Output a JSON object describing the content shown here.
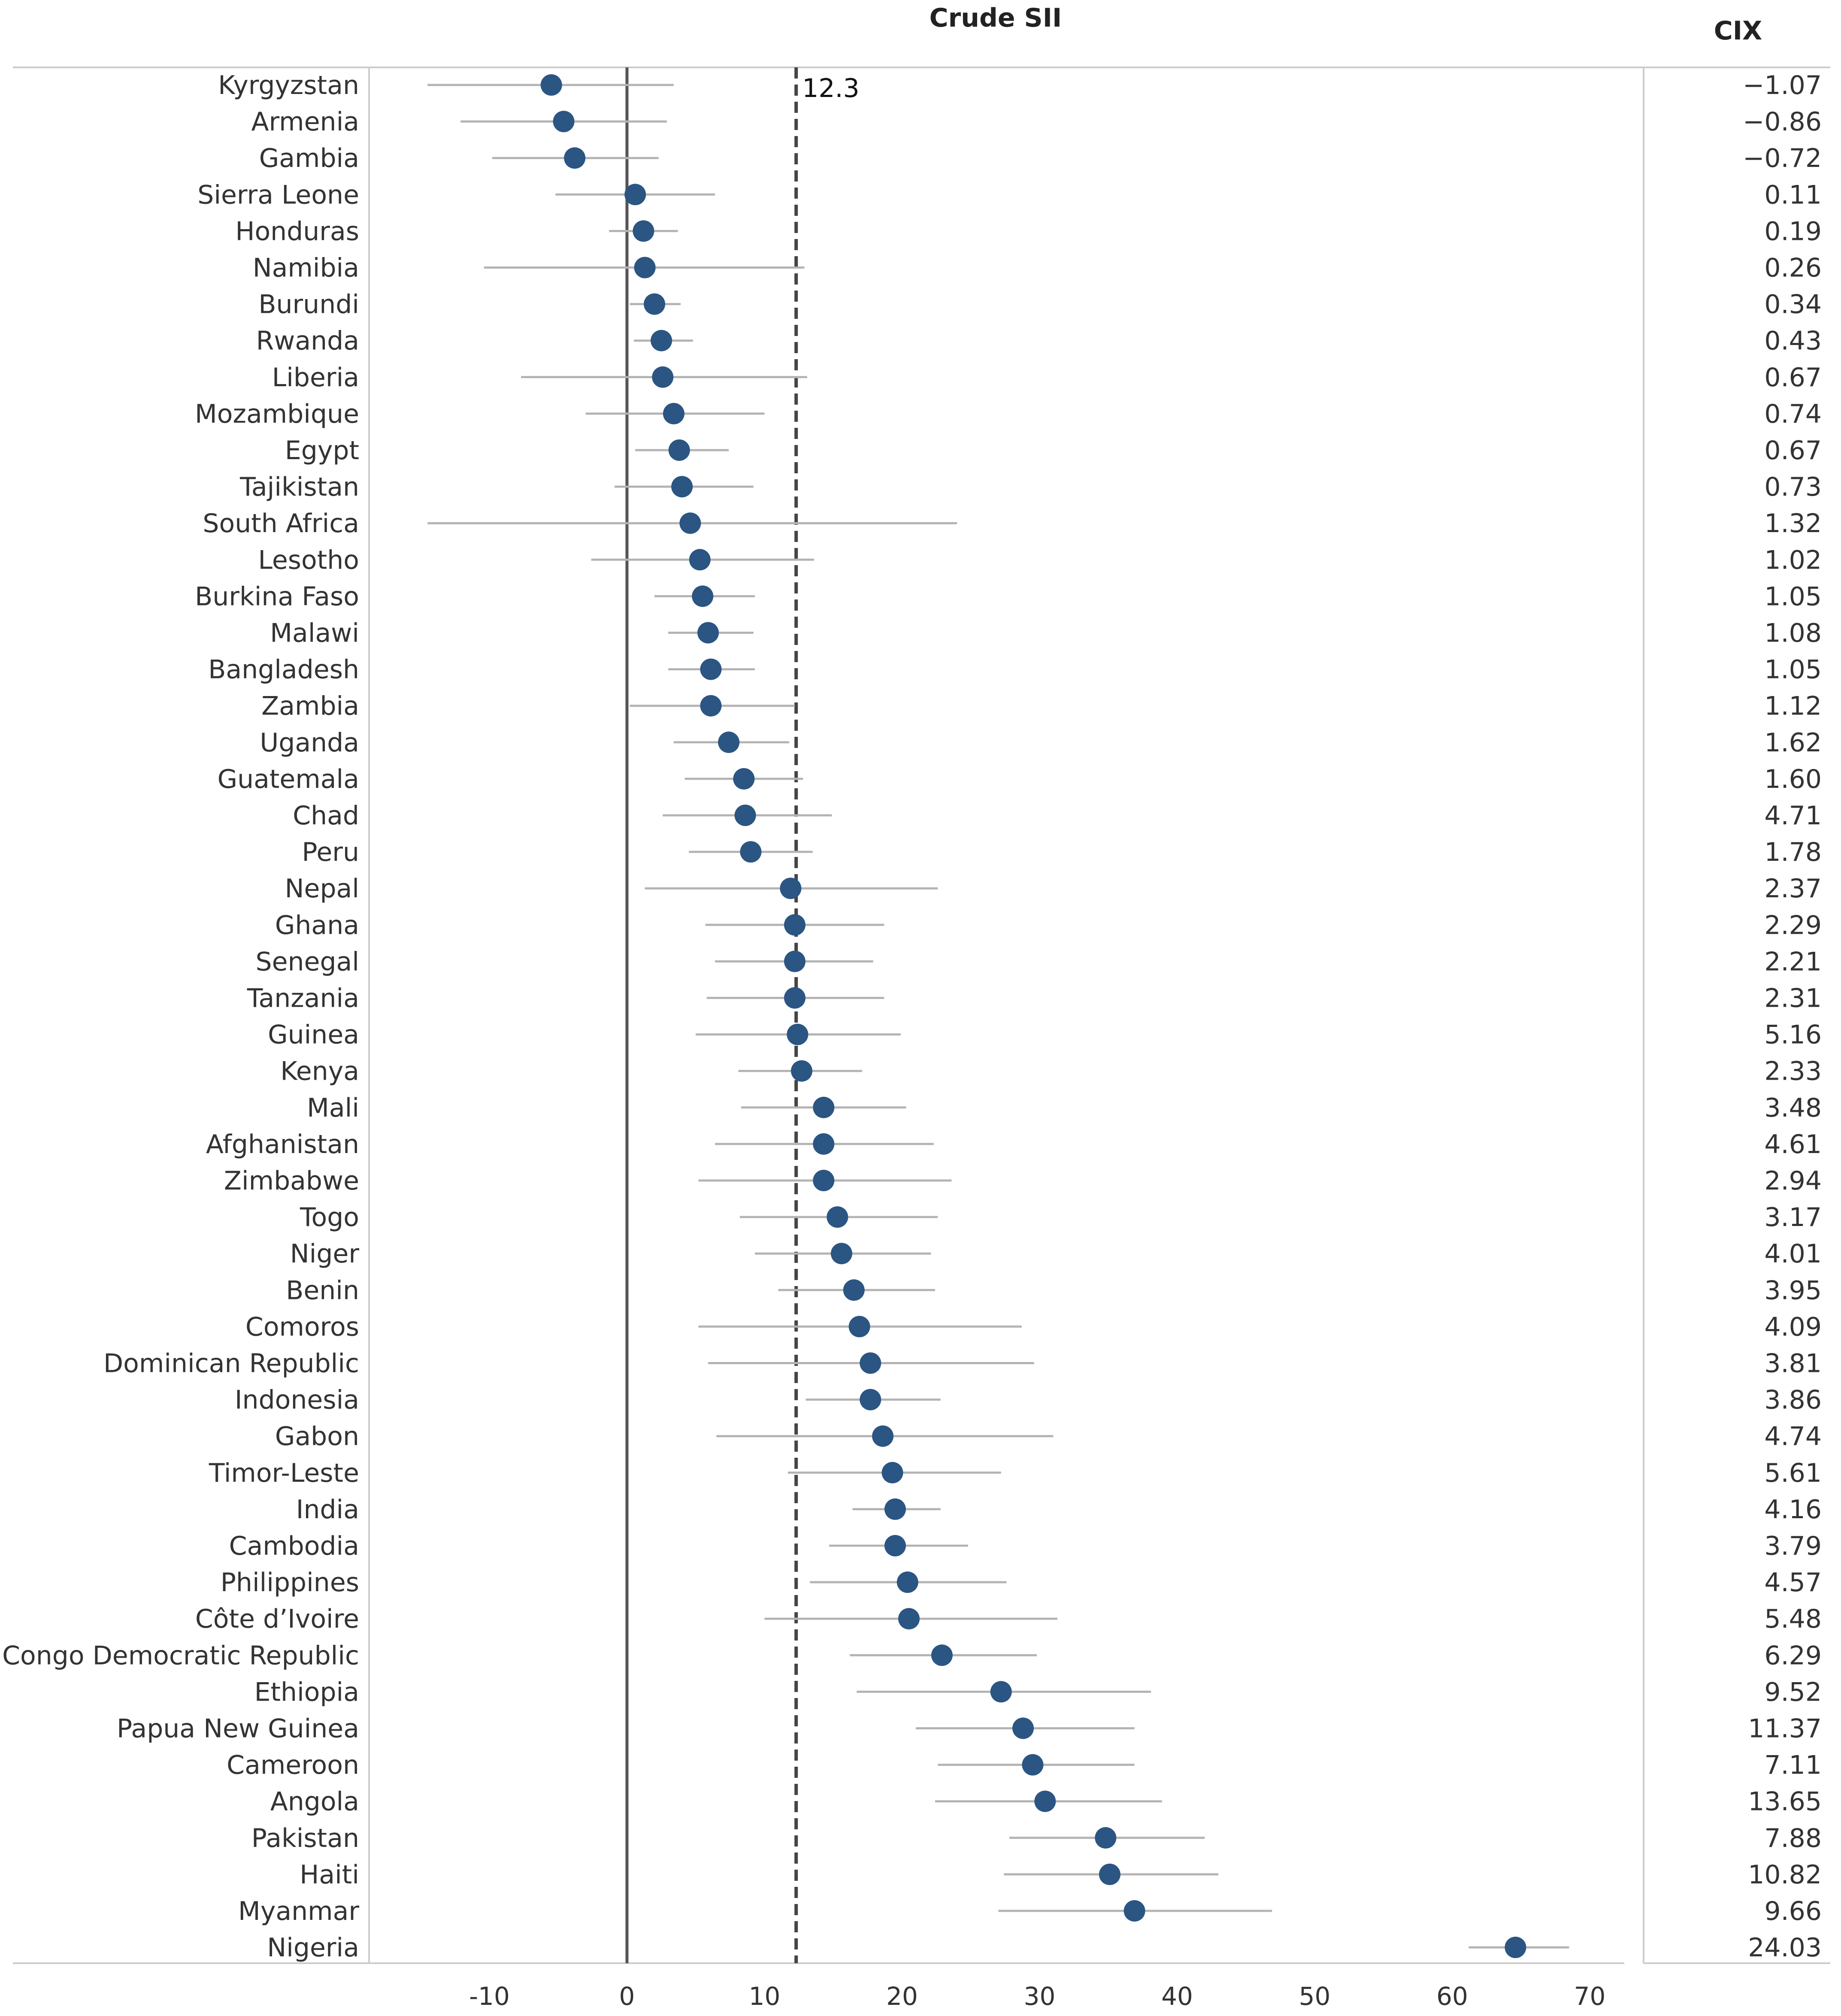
{
  "chart_data": {
    "type": "forest_plot",
    "title": "Crude SII",
    "right_column_title": "CIX",
    "reference_line": {
      "value": 12.3,
      "label": "12.3"
    },
    "zero_line": 0,
    "xlim": [
      -20,
      72
    ],
    "x_ticks": [
      -10,
      0,
      10,
      20,
      30,
      40,
      50,
      60,
      70
    ],
    "x_tick_labels": [
      "-10",
      "0",
      "10",
      "20",
      "30",
      "40",
      "50",
      "60",
      "70"
    ],
    "colors": {
      "point": "#2b5582",
      "ci": "#b3b3b3",
      "zero": "#555555",
      "ref": "#444444"
    },
    "rows": [
      {
        "country": "Kyrgyzstan",
        "sii": -5.5,
        "lo": -14.5,
        "hi": 3.4,
        "cix": "−1.07"
      },
      {
        "country": "Armenia",
        "sii": -4.6,
        "lo": -12.1,
        "hi": 2.9,
        "cix": "−0.86"
      },
      {
        "country": "Gambia",
        "sii": -3.8,
        "lo": -9.8,
        "hi": 2.3,
        "cix": "−0.72"
      },
      {
        "country": "Sierra Leone",
        "sii": 0.6,
        "lo": -5.2,
        "hi": 6.4,
        "cix": "0.11"
      },
      {
        "country": "Honduras",
        "sii": 1.2,
        "lo": -1.3,
        "hi": 3.7,
        "cix": "0.19"
      },
      {
        "country": "Namibia",
        "sii": 1.3,
        "lo": -10.4,
        "hi": 12.9,
        "cix": "0.26"
      },
      {
        "country": "Burundi",
        "sii": 2.0,
        "lo": 0.2,
        "hi": 3.9,
        "cix": "0.34"
      },
      {
        "country": "Rwanda",
        "sii": 2.5,
        "lo": 0.5,
        "hi": 4.8,
        "cix": "0.43"
      },
      {
        "country": "Liberia",
        "sii": 2.6,
        "lo": -7.7,
        "hi": 13.1,
        "cix": "0.67"
      },
      {
        "country": "Mozambique",
        "sii": 3.4,
        "lo": -3.0,
        "hi": 10.0,
        "cix": "0.74"
      },
      {
        "country": "Egypt",
        "sii": 3.8,
        "lo": 0.6,
        "hi": 7.4,
        "cix": "0.67"
      },
      {
        "country": "Tajikistan",
        "sii": 4.0,
        "lo": -0.9,
        "hi": 9.2,
        "cix": "0.73"
      },
      {
        "country": "South Africa",
        "sii": 4.6,
        "lo": -14.5,
        "hi": 24.0,
        "cix": "1.32"
      },
      {
        "country": "Lesotho",
        "sii": 5.3,
        "lo": -2.6,
        "hi": 13.6,
        "cix": "1.02"
      },
      {
        "country": "Burkina Faso",
        "sii": 5.5,
        "lo": 2.0,
        "hi": 9.3,
        "cix": "1.05"
      },
      {
        "country": "Malawi",
        "sii": 5.9,
        "lo": 3.0,
        "hi": 9.2,
        "cix": "1.08"
      },
      {
        "country": "Bangladesh",
        "sii": 6.1,
        "lo": 3.0,
        "hi": 9.3,
        "cix": "1.05"
      },
      {
        "country": "Zambia",
        "sii": 6.1,
        "lo": 0.2,
        "hi": 12.2,
        "cix": "1.12"
      },
      {
        "country": "Uganda",
        "sii": 7.4,
        "lo": 3.4,
        "hi": 11.8,
        "cix": "1.62"
      },
      {
        "country": "Guatemala",
        "sii": 8.5,
        "lo": 4.2,
        "hi": 12.8,
        "cix": "1.60"
      },
      {
        "country": "Chad",
        "sii": 8.6,
        "lo": 2.6,
        "hi": 14.9,
        "cix": "4.71"
      },
      {
        "country": "Peru",
        "sii": 9.0,
        "lo": 4.5,
        "hi": 13.5,
        "cix": "1.78"
      },
      {
        "country": "Nepal",
        "sii": 11.9,
        "lo": 1.3,
        "hi": 22.6,
        "cix": "2.37"
      },
      {
        "country": "Ghana",
        "sii": 12.2,
        "lo": 5.7,
        "hi": 18.7,
        "cix": "2.29"
      },
      {
        "country": "Senegal",
        "sii": 12.2,
        "lo": 6.4,
        "hi": 17.9,
        "cix": "2.21"
      },
      {
        "country": "Tanzania",
        "sii": 12.2,
        "lo": 5.8,
        "hi": 18.7,
        "cix": "2.31"
      },
      {
        "country": "Guinea",
        "sii": 12.4,
        "lo": 5.0,
        "hi": 19.9,
        "cix": "5.16"
      },
      {
        "country": "Kenya",
        "sii": 12.7,
        "lo": 8.1,
        "hi": 17.1,
        "cix": "2.33"
      },
      {
        "country": "Mali",
        "sii": 14.3,
        "lo": 8.3,
        "hi": 20.3,
        "cix": "3.48"
      },
      {
        "country": "Afghanistan",
        "sii": 14.3,
        "lo": 6.4,
        "hi": 22.3,
        "cix": "4.61"
      },
      {
        "country": "Zimbabwe",
        "sii": 14.3,
        "lo": 5.2,
        "hi": 23.6,
        "cix": "2.94"
      },
      {
        "country": "Togo",
        "sii": 15.3,
        "lo": 8.2,
        "hi": 22.6,
        "cix": "3.17"
      },
      {
        "country": "Niger",
        "sii": 15.6,
        "lo": 9.3,
        "hi": 22.1,
        "cix": "4.01"
      },
      {
        "country": "Benin",
        "sii": 16.5,
        "lo": 11.0,
        "hi": 22.4,
        "cix": "3.95"
      },
      {
        "country": "Comoros",
        "sii": 16.9,
        "lo": 5.2,
        "hi": 28.7,
        "cix": "4.09"
      },
      {
        "country": "Dominican Republic",
        "sii": 17.7,
        "lo": 5.9,
        "hi": 29.6,
        "cix": "3.81"
      },
      {
        "country": "Indonesia",
        "sii": 17.7,
        "lo": 13.0,
        "hi": 22.8,
        "cix": "3.86"
      },
      {
        "country": "Gabon",
        "sii": 18.6,
        "lo": 6.5,
        "hi": 31.0,
        "cix": "4.74"
      },
      {
        "country": "Timor-Leste",
        "sii": 19.3,
        "lo": 11.7,
        "hi": 27.2,
        "cix": "5.61"
      },
      {
        "country": "India",
        "sii": 19.5,
        "lo": 16.4,
        "hi": 22.8,
        "cix": "4.16"
      },
      {
        "country": "Cambodia",
        "sii": 19.5,
        "lo": 14.7,
        "hi": 24.8,
        "cix": "3.79"
      },
      {
        "country": "Philippines",
        "sii": 20.4,
        "lo": 13.3,
        "hi": 27.6,
        "cix": "4.57"
      },
      {
        "country": "Côte d’Ivoire",
        "sii": 20.5,
        "lo": 10.0,
        "hi": 31.3,
        "cix": "5.48"
      },
      {
        "country": "Congo Democratic Republic",
        "sii": 22.9,
        "lo": 16.2,
        "hi": 29.8,
        "cix": "6.29"
      },
      {
        "country": "Ethiopia",
        "sii": 27.2,
        "lo": 16.7,
        "hi": 38.1,
        "cix": "9.52"
      },
      {
        "country": "Papua New Guinea",
        "sii": 28.8,
        "lo": 21.0,
        "hi": 36.9,
        "cix": "11.37"
      },
      {
        "country": "Cameroon",
        "sii": 29.5,
        "lo": 22.6,
        "hi": 36.9,
        "cix": "7.11"
      },
      {
        "country": "Angola",
        "sii": 30.4,
        "lo": 22.4,
        "hi": 38.9,
        "cix": "13.65"
      },
      {
        "country": "Pakistan",
        "sii": 34.8,
        "lo": 27.8,
        "hi": 42.0,
        "cix": "7.88"
      },
      {
        "country": "Haiti",
        "sii": 35.1,
        "lo": 27.4,
        "hi": 43.0,
        "cix": "10.82"
      },
      {
        "country": "Myanmar",
        "sii": 36.9,
        "lo": 27.0,
        "hi": 46.9,
        "cix": "9.66"
      },
      {
        "country": "Nigeria",
        "sii": 64.6,
        "lo": 61.2,
        "hi": 68.5,
        "cix": "24.03"
      }
    ]
  }
}
